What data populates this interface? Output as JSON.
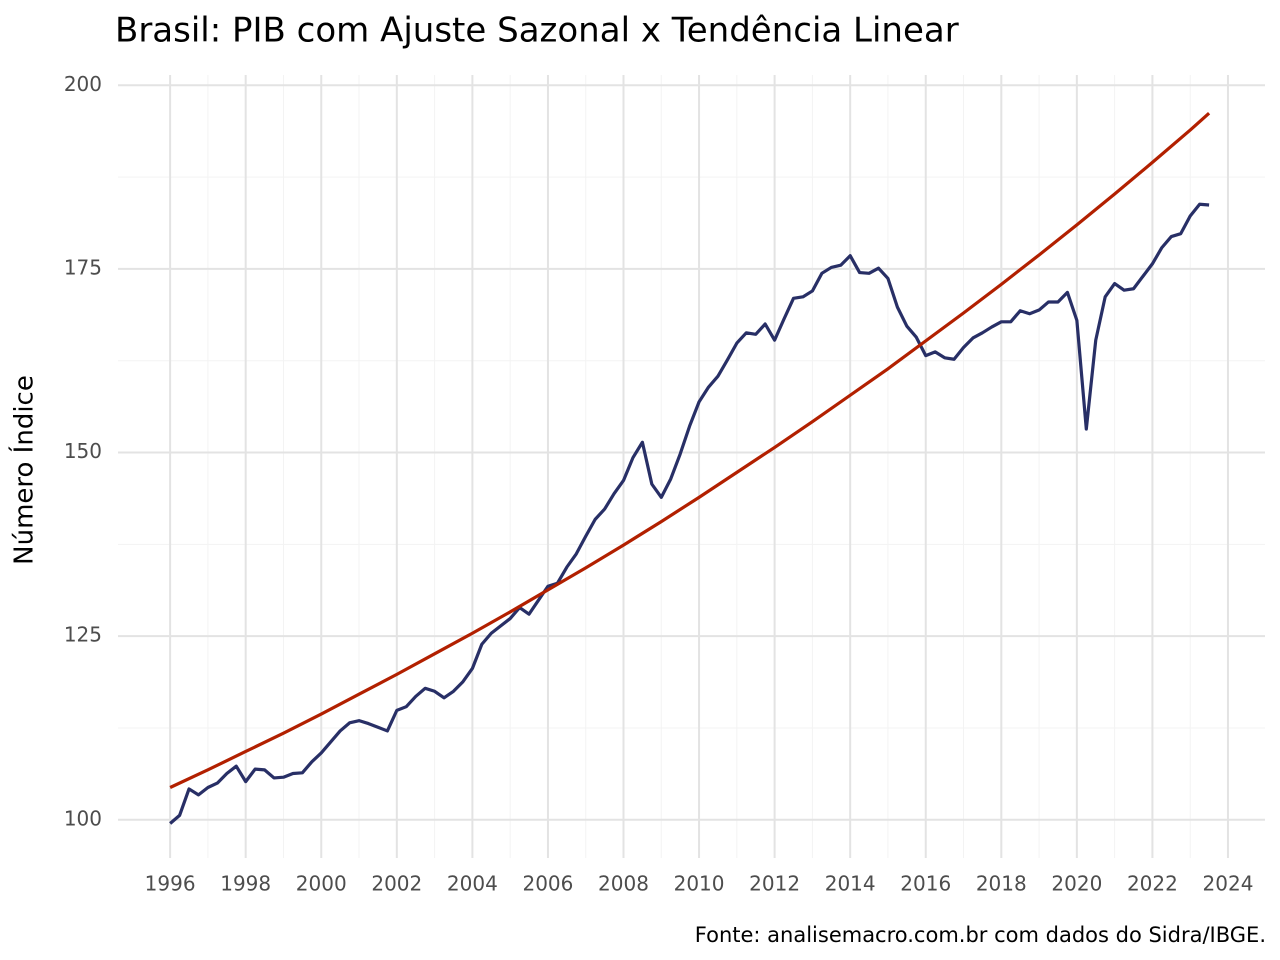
{
  "chart_data": {
    "type": "line",
    "title": "Brasil: PIB com Ajuste Sazonal x Tendência Linear",
    "y_label": "Número Índice",
    "caption": "Fonte: analisemacro.com.br com dados do Sidra/IBGE.",
    "xlim": [
      1994.62,
      2024.98
    ],
    "ylim": [
      94.8,
      201.4
    ],
    "xticks": [
      1996,
      1998,
      2000,
      2002,
      2004,
      2006,
      2008,
      2010,
      2012,
      2014,
      2016,
      2018,
      2020,
      2022,
      2024
    ],
    "yticks": [
      100,
      125,
      150,
      175,
      200
    ],
    "grid": true,
    "series": [
      {
        "color": "#282f66",
        "x": [
          1996,
          1996.25,
          1996.5,
          1996.75,
          1997,
          1997.25,
          1997.5,
          1997.75,
          1998,
          1998.25,
          1998.5,
          1998.75,
          1999,
          1999.25,
          1999.5,
          1999.75,
          2000,
          2000.25,
          2000.5,
          2000.75,
          2001,
          2001.25,
          2001.5,
          2001.75,
          2002,
          2002.25,
          2002.5,
          2002.75,
          2003,
          2003.25,
          2003.5,
          2003.75,
          2004,
          2004.25,
          2004.5,
          2004.75,
          2005,
          2005.25,
          2005.5,
          2005.75,
          2006,
          2006.25,
          2006.5,
          2006.75,
          2007,
          2007.25,
          2007.5,
          2007.75,
          2008,
          2008.25,
          2008.5,
          2008.75,
          2009,
          2009.25,
          2009.5,
          2009.75,
          2010,
          2010.25,
          2010.5,
          2010.75,
          2011,
          2011.25,
          2011.5,
          2011.75,
          2012,
          2012.25,
          2012.5,
          2012.75,
          2013,
          2013.25,
          2013.5,
          2013.75,
          2014,
          2014.25,
          2014.5,
          2014.75,
          2015,
          2015.25,
          2015.5,
          2015.75,
          2016,
          2016.25,
          2016.5,
          2016.75,
          2017,
          2017.25,
          2017.5,
          2017.75,
          2018,
          2018.25,
          2018.5,
          2018.75,
          2019,
          2019.25,
          2019.5,
          2019.75,
          2020,
          2020.25,
          2020.5,
          2020.75,
          2021,
          2021.25,
          2021.5,
          2021.75,
          2022,
          2022.25,
          2022.5,
          2022.75,
          2023,
          2023.25,
          2023.5
        ],
        "values": [
          99.5,
          100.6,
          104.2,
          103.4,
          104.4,
          105.0,
          106.3,
          107.3,
          105.2,
          106.9,
          106.8,
          105.7,
          105.8,
          106.3,
          106.4,
          107.9,
          109.1,
          110.6,
          112.1,
          113.2,
          113.5,
          113.1,
          112.6,
          112.1,
          114.9,
          115.4,
          116.8,
          117.9,
          117.5,
          116.6,
          117.5,
          118.8,
          120.6,
          123.9,
          125.4,
          126.4,
          127.4,
          128.9,
          128.0,
          129.9,
          131.8,
          132.2,
          134.4,
          136.2,
          138.6,
          140.9,
          142.3,
          144.4,
          146.2,
          149.3,
          151.4,
          145.7,
          143.9,
          146.4,
          149.8,
          153.6,
          156.9,
          158.9,
          160.4,
          162.6,
          164.9,
          166.3,
          166.1,
          167.5,
          165.3,
          168.2,
          171.0,
          171.2,
          172.0,
          174.4,
          175.2,
          175.5,
          176.8,
          174.5,
          174.4,
          175.1,
          173.7,
          169.8,
          167.2,
          165.7,
          163.2,
          163.7,
          162.9,
          162.7,
          164.3,
          165.6,
          166.3,
          167.1,
          167.8,
          167.8,
          169.3,
          168.9,
          169.4,
          170.5,
          170.5,
          171.8,
          168.0,
          153.2,
          165.3,
          171.2,
          173.0,
          172.1,
          172.3,
          174.0,
          175.7,
          177.9,
          179.4,
          179.8,
          182.2,
          183.8,
          183.7
        ]
      },
      {
        "color": "#b22000",
        "x": [
          1996,
          1997,
          1998,
          1999,
          2000,
          2001,
          2002,
          2003,
          2004,
          2005,
          2006,
          2007,
          2008,
          2009,
          2010,
          2011,
          2012,
          2013,
          2014,
          2015,
          2016,
          2017,
          2018,
          2019,
          2020,
          2021,
          2022,
          2023,
          2023.5
        ],
        "values": [
          104.4,
          106.8,
          109.3,
          111.8,
          114.4,
          117.1,
          119.8,
          122.6,
          125.4,
          128.3,
          131.3,
          134.3,
          137.4,
          140.6,
          143.9,
          147.3,
          150.7,
          154.2,
          157.8,
          161.4,
          165.2,
          169.0,
          172.9,
          176.9,
          181.0,
          185.2,
          189.5,
          193.9,
          196.2
        ]
      }
    ]
  }
}
